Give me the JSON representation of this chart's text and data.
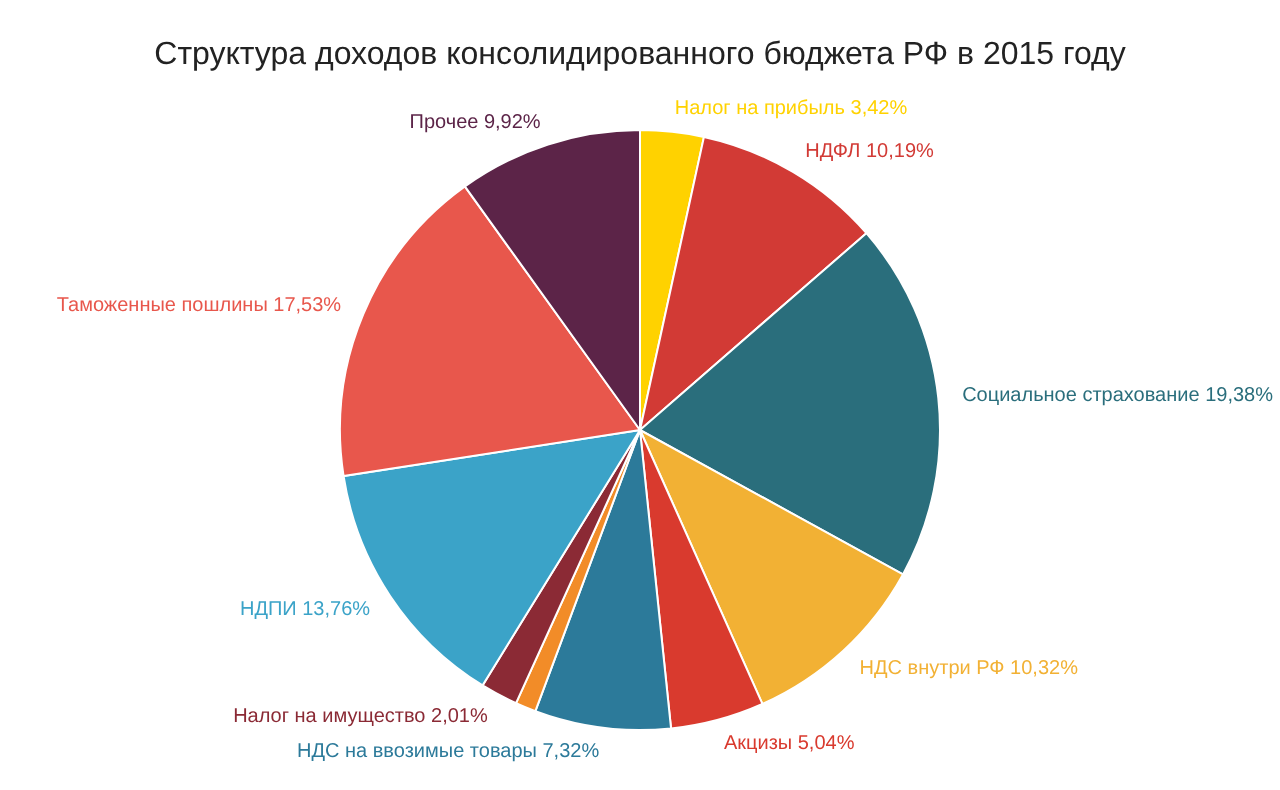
{
  "chart_data": {
    "type": "pie",
    "title": "Структура доходов консолидированного бюджета РФ в 2015 году",
    "categories": [
      "Налог на прибыль",
      "НДФЛ",
      "Социальное страхование",
      "НДС внутри РФ",
      "Акцизы",
      "НДС на ввозимые товары",
      null,
      "Налог на имущество",
      "НДПИ",
      "Таможенные пошлины",
      "Прочее"
    ],
    "values": [
      3.42,
      10.19,
      19.38,
      10.32,
      5.04,
      7.32,
      1.11,
      2.01,
      13.76,
      17.53,
      9.92
    ],
    "value_labels": [
      "3,42%",
      "10,19%",
      "19,38%",
      "10,32%",
      "5,04%",
      "7,32%",
      null,
      "2,01%",
      "13,76%",
      "17,53%",
      "9,92%"
    ],
    "colors": [
      "#ffd200",
      "#d23a35",
      "#2a6e7c",
      "#f2b134",
      "#d93a2e",
      "#2c7a9a",
      "#f28c28",
      "#8b2a35",
      "#3ba3c8",
      "#e8574c",
      "#5c2448"
    ]
  }
}
